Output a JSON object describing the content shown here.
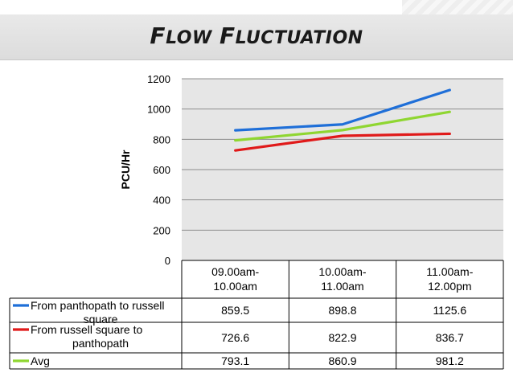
{
  "slide": {
    "title": "Flow Fluctuation"
  },
  "chart_data": {
    "type": "line",
    "title": "",
    "xlabel": "",
    "ylabel": "PCU/Hr",
    "ylim": [
      0,
      1200
    ],
    "yticks": [
      0,
      200,
      400,
      600,
      800,
      1000,
      1200
    ],
    "grid": true,
    "legend": "data-table",
    "categories": [
      "09.00am-10.00am",
      "10.00am-11.00am",
      "11.00am-12.00pm"
    ],
    "category_lines": [
      [
        "09.00am-",
        "10.00am"
      ],
      [
        "10.00am-",
        "11.00am"
      ],
      [
        "11.00am-",
        "12.00pm"
      ]
    ],
    "series": [
      {
        "name": "From panthopath to russell square",
        "name_lines": [
          "From panthopath to russell",
          "square"
        ],
        "values": [
          859.5,
          898.8,
          1125.6
        ],
        "value_labels": [
          "859.5",
          "898.8",
          "1125.6"
        ],
        "color": "#1f6fd8"
      },
      {
        "name": "From russell square to panthopath",
        "name_lines": [
          "From russell square to",
          "panthopath"
        ],
        "values": [
          726.6,
          822.9,
          836.7
        ],
        "value_labels": [
          "726.6",
          "822.9",
          "836.7"
        ],
        "color": "#e01a1a"
      },
      {
        "name": "Avg",
        "name_lines": [
          "Avg"
        ],
        "values": [
          793.1,
          860.9,
          981.2
        ],
        "value_labels": [
          "793.1",
          "860.9",
          "981.2"
        ],
        "color": "#8fd631"
      }
    ]
  }
}
